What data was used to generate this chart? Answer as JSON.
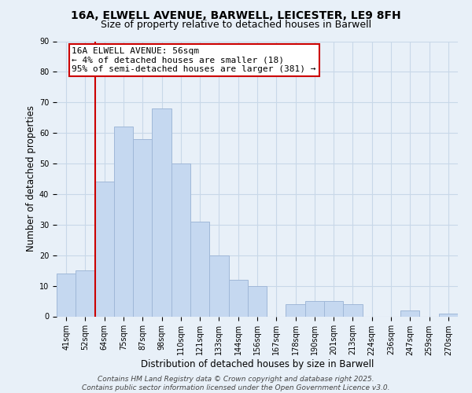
{
  "title_line1": "16A, ELWELL AVENUE, BARWELL, LEICESTER, LE9 8FH",
  "title_line2": "Size of property relative to detached houses in Barwell",
  "xlabel": "Distribution of detached houses by size in Barwell",
  "ylabel": "Number of detached properties",
  "bar_labels": [
    "41sqm",
    "52sqm",
    "64sqm",
    "75sqm",
    "87sqm",
    "98sqm",
    "110sqm",
    "121sqm",
    "133sqm",
    "144sqm",
    "156sqm",
    "167sqm",
    "178sqm",
    "190sqm",
    "201sqm",
    "213sqm",
    "224sqm",
    "236sqm",
    "247sqm",
    "259sqm",
    "270sqm"
  ],
  "bar_values": [
    14,
    15,
    44,
    62,
    58,
    68,
    50,
    31,
    20,
    12,
    10,
    0,
    4,
    5,
    5,
    4,
    0,
    0,
    2,
    0,
    1
  ],
  "bar_color": "#c5d8f0",
  "bar_edge_color": "#a0b8d8",
  "vline_x_idx": 1,
  "vline_color": "#cc0000",
  "annotation_text": "16A ELWELL AVENUE: 56sqm\n← 4% of detached houses are smaller (18)\n95% of semi-detached houses are larger (381) →",
  "annotation_box_color": "#ffffff",
  "annotation_box_edge": "#cc0000",
  "ylim": [
    0,
    90
  ],
  "yticks": [
    0,
    10,
    20,
    30,
    40,
    50,
    60,
    70,
    80,
    90
  ],
  "grid_color": "#c8d8e8",
  "background_color": "#e8f0f8",
  "footer_line1": "Contains HM Land Registry data © Crown copyright and database right 2025.",
  "footer_line2": "Contains public sector information licensed under the Open Government Licence v3.0.",
  "title_fontsize": 10,
  "subtitle_fontsize": 9,
  "axis_label_fontsize": 8.5,
  "tick_fontsize": 7,
  "annotation_fontsize": 8,
  "footer_fontsize": 6.5
}
